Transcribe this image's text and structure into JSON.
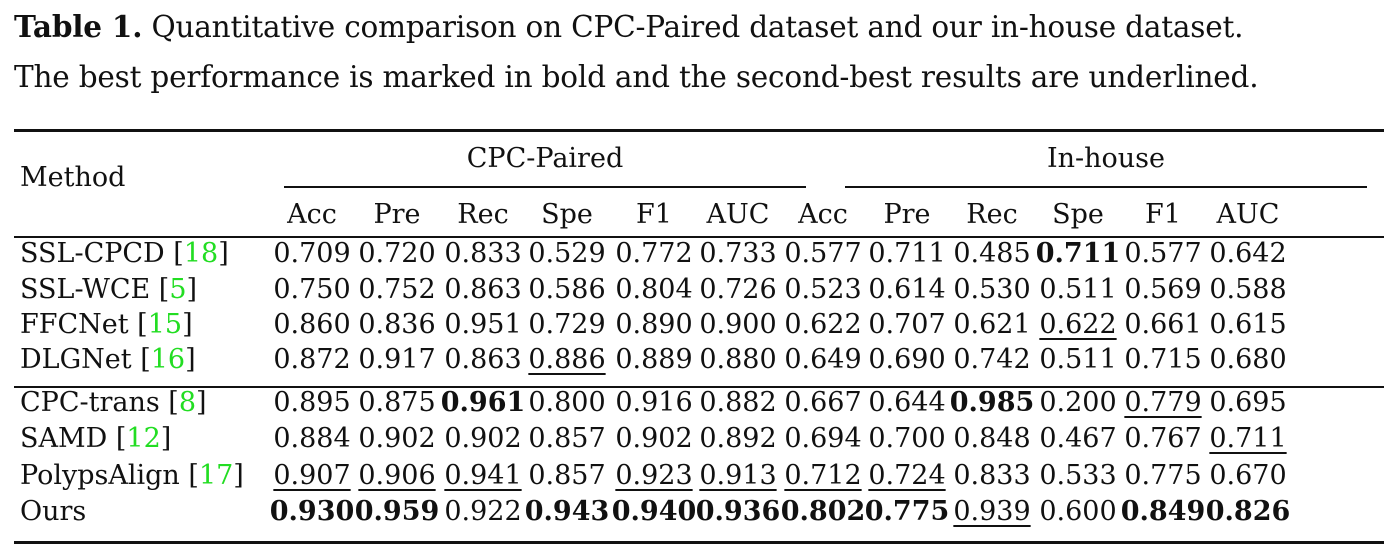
{
  "caption": {
    "label": "Table 1.",
    "line1_text": "Quantitative comparison on CPC-Paired dataset and our in-house dataset.",
    "line2_text": "The best performance is marked in bold and the second-best results are underlined."
  },
  "table": {
    "method_header": "Method",
    "group_headers": [
      "CPC-Paired",
      "In-house"
    ],
    "metric_headers": [
      "Acc",
      "Pre",
      "Rec",
      "Spe",
      "F1",
      "AUC",
      "Acc",
      "Pre",
      "Rec",
      "Spe",
      "F1",
      "AUC"
    ],
    "cite_color": "#22dd22",
    "rows": [
      {
        "name": "SSL-CPCD",
        "cite": "18",
        "values": [
          "0.709",
          "0.720",
          "0.833",
          "0.529",
          "0.772",
          "0.733",
          "0.577",
          "0.711",
          "0.485",
          "0.711",
          "0.577",
          "0.642"
        ],
        "bold": [
          9
        ],
        "underline": []
      },
      {
        "name": "SSL-WCE",
        "cite": "5",
        "values": [
          "0.750",
          "0.752",
          "0.863",
          "0.586",
          "0.804",
          "0.726",
          "0.523",
          "0.614",
          "0.530",
          "0.511",
          "0.569",
          "0.588"
        ],
        "bold": [],
        "underline": []
      },
      {
        "name": "FFCNet",
        "cite": "15",
        "values": [
          "0.860",
          "0.836",
          "0.951",
          "0.729",
          "0.890",
          "0.900",
          "0.622",
          "0.707",
          "0.621",
          "0.622",
          "0.661",
          "0.615"
        ],
        "bold": [],
        "underline": [
          9
        ]
      },
      {
        "name": "DLGNet",
        "cite": "16",
        "values": [
          "0.872",
          "0.917",
          "0.863",
          "0.886",
          "0.889",
          "0.880",
          "0.649",
          "0.690",
          "0.742",
          "0.511",
          "0.715",
          "0.680"
        ],
        "bold": [],
        "underline": [
          3
        ]
      },
      {
        "name": "CPC-trans",
        "cite": "8",
        "values": [
          "0.895",
          "0.875",
          "0.961",
          "0.800",
          "0.916",
          "0.882",
          "0.667",
          "0.644",
          "0.985",
          "0.200",
          "0.779",
          "0.695"
        ],
        "bold": [
          2,
          8
        ],
        "underline": [
          10
        ]
      },
      {
        "name": "SAMD",
        "cite": "12",
        "values": [
          "0.884",
          "0.902",
          "0.902",
          "0.857",
          "0.902",
          "0.892",
          "0.694",
          "0.700",
          "0.848",
          "0.467",
          "0.767",
          "0.711"
        ],
        "bold": [],
        "underline": [
          11
        ]
      },
      {
        "name": "PolypsAlign",
        "cite": "17",
        "values": [
          "0.907",
          "0.906",
          "0.941",
          "0.857",
          "0.923",
          "0.913",
          "0.712",
          "0.724",
          "0.833",
          "0.533",
          "0.775",
          "0.670"
        ],
        "bold": [],
        "underline": [
          0,
          1,
          2,
          4,
          5,
          6,
          7
        ]
      },
      {
        "name": "Ours",
        "cite": "",
        "values": [
          "0.930",
          "0.959",
          "0.922",
          "0.943",
          "0.940",
          "0.936",
          "0.802",
          "0.775",
          "0.939",
          "0.600",
          "0.849",
          "0.826"
        ],
        "bold": [
          0,
          1,
          3,
          4,
          5,
          6,
          7,
          10,
          11
        ],
        "underline": [
          8
        ]
      }
    ]
  }
}
